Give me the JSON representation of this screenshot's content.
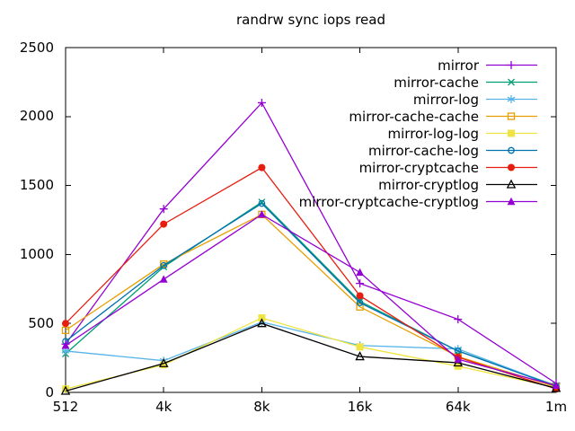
{
  "chart_data": {
    "type": "line",
    "title": "randrw sync iops read",
    "xlabel": "",
    "ylabel": "",
    "categories": [
      "512",
      "4k",
      "8k",
      "16k",
      "64k",
      "1m"
    ],
    "y_ticks": [
      "0",
      "500",
      "1000",
      "1500",
      "2000",
      "2500"
    ],
    "ylim": [
      0,
      2500
    ],
    "grid": false,
    "legend_position": "top-right-inside",
    "series": [
      {
        "name": "mirror",
        "color": "#9400d3",
        "marker": "plus",
        "values": [
          350,
          1330,
          2100,
          790,
          530,
          65
        ]
      },
      {
        "name": "mirror-cache",
        "color": "#009e73",
        "marker": "cross",
        "values": [
          280,
          910,
          1380,
          660,
          300,
          50
        ]
      },
      {
        "name": "mirror-log",
        "color": "#56b4e9",
        "marker": "asterisk",
        "values": [
          300,
          230,
          510,
          340,
          315,
          45
        ]
      },
      {
        "name": "mirror-cache-cache",
        "color": "#e69f00",
        "marker": "square-open",
        "values": [
          450,
          930,
          1290,
          620,
          260,
          40
        ]
      },
      {
        "name": "mirror-log-log",
        "color": "#f0e442",
        "marker": "square-filled",
        "values": [
          25,
          200,
          540,
          330,
          190,
          35
        ]
      },
      {
        "name": "mirror-cache-log",
        "color": "#0072b2",
        "marker": "circle-open",
        "values": [
          370,
          920,
          1370,
          650,
          300,
          45
        ]
      },
      {
        "name": "mirror-cryptcache",
        "color": "#e51e10",
        "marker": "circle-filled",
        "values": [
          500,
          1220,
          1630,
          700,
          255,
          25
        ]
      },
      {
        "name": "mirror-cryptlog",
        "color": "#000000",
        "marker": "triangle-open",
        "values": [
          10,
          210,
          500,
          260,
          215,
          30
        ]
      },
      {
        "name": "mirror-cryptcache-cryptlog",
        "color": "#9400d3",
        "marker": "triangle-filled",
        "values": [
          340,
          820,
          1290,
          870,
          240,
          50
        ]
      }
    ]
  }
}
